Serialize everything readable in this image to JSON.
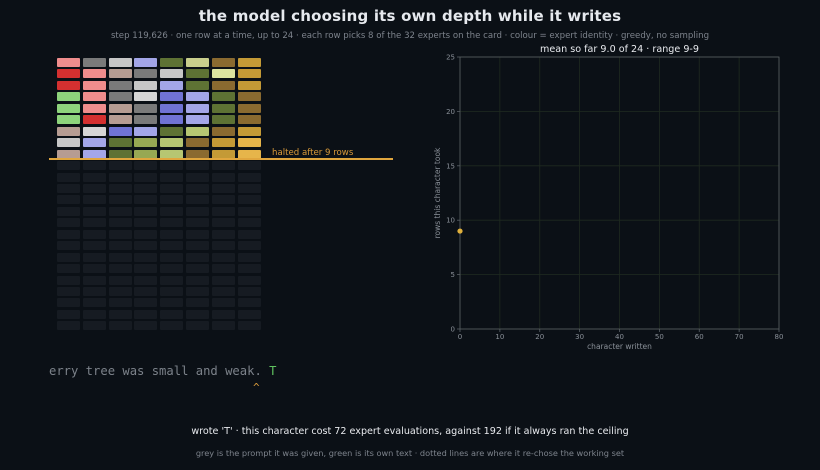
{
  "header": {
    "title": "the model choosing its own depth while it writes",
    "subtitle": "step 119,626  ·  one row at a time, up to 24  ·  each row picks 8 of the 32 experts on the card  ·  colour = expert identity  ·  greedy, no sampling"
  },
  "grid": {
    "max_rows": 24,
    "experts_per_row": 8,
    "halt_label": "halted after 9 rows",
    "rows": [
      [
        "#f08d8d",
        "#7a7a7a",
        "#c7c7c7",
        "#a3a6e8",
        "#5e7234",
        "#c9cf8c",
        "#8a6a30",
        "#c49a36"
      ],
      [
        "#d43030",
        "#f08d8d",
        "#b69c92",
        "#7a7a7a",
        "#c7c7c7",
        "#5e7234",
        "#dde4a0",
        "#c49a36"
      ],
      [
        "#d43030",
        "#f08d8d",
        "#7a7a7a",
        "#c7c7c7",
        "#a3a6e8",
        "#5e7234",
        "#8a6a30",
        "#c49a36"
      ],
      [
        "#8ed47c",
        "#f08d8d",
        "#7a7a7a",
        "#d6d6d6",
        "#7073d4",
        "#a3a6e8",
        "#5e7234",
        "#8a6a30"
      ],
      [
        "#8ed47c",
        "#f08d8d",
        "#b69c92",
        "#7a7a7a",
        "#7073d4",
        "#a3a6e8",
        "#5e7234",
        "#8a6a30"
      ],
      [
        "#8ed47c",
        "#d43030",
        "#b69c92",
        "#7a7a7a",
        "#7073d4",
        "#a3a6e8",
        "#5e7234",
        "#8a6a30"
      ],
      [
        "#b69c92",
        "#d6d6d6",
        "#7073d4",
        "#a3a6e8",
        "#5e7234",
        "#b6c672",
        "#8a6a30",
        "#c49a36"
      ],
      [
        "#c7c7c7",
        "#a3a6e8",
        "#5e7234",
        "#97a853",
        "#b6c672",
        "#8a6a30",
        "#c49a36",
        "#e6b54a"
      ],
      [
        "#b69c92",
        "#a3a6e8",
        "#5e7234",
        "#97a853",
        "#b6c672",
        "#8a6a30",
        "#c49a36",
        "#e6b54a"
      ]
    ]
  },
  "text": {
    "prompt": "erry tree was small and weak. ",
    "own": "T",
    "caret": "^"
  },
  "footer": {
    "line1": "wrote 'T'   ·   this character cost 72 expert evaluations, against 192 if it always ran the ceiling",
    "line2": "grey is the prompt it was given, green is its own text  ·  dotted lines are where it re-chose the working set"
  },
  "chart_data": {
    "type": "scatter",
    "title": "mean so far 9.0 of 24  ·  range 9-9",
    "xlabel": "character written",
    "ylabel": "rows this character took",
    "xlim": [
      0,
      80
    ],
    "ylim": [
      0,
      25
    ],
    "xticks": [
      "0",
      "10",
      "20",
      "30",
      "40",
      "50",
      "60",
      "70",
      "80"
    ],
    "yticks": [
      "0",
      "5",
      "10",
      "15",
      "20",
      "25"
    ],
    "grid": true,
    "point_color": "#e0b03c",
    "series": [
      {
        "x": [
          0
        ],
        "y": [
          9
        ]
      }
    ]
  }
}
